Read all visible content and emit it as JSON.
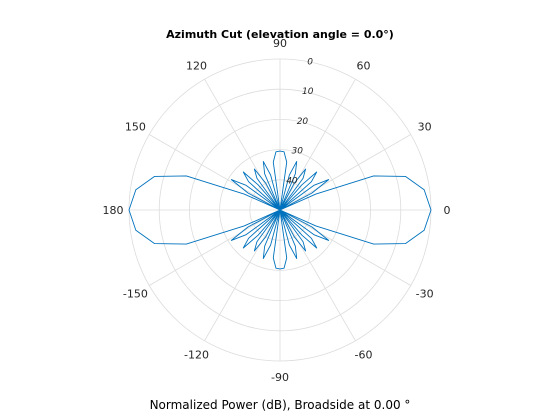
{
  "chart_data": {
    "type": "polar",
    "title": "Azimuth Cut (elevation angle = 0.0°)",
    "caption": "Normalized Power (dB), Broadside at 0.00 °",
    "angle_ticks": [
      "90",
      "60",
      "30",
      "0",
      "-30",
      "-60",
      "-90",
      "-120",
      "-150",
      "180",
      "150",
      "120"
    ],
    "angle_tick_values_deg": [
      90,
      60,
      30,
      0,
      -30,
      -60,
      -90,
      -120,
      -150,
      180,
      150,
      120
    ],
    "radial_ticks": [
      "0",
      "10",
      "20",
      "30",
      "40"
    ],
    "radial_tick_values_db": [
      0,
      10,
      20,
      30,
      40
    ],
    "radial_range_db": [
      0,
      50
    ],
    "grid": true,
    "series": [
      {
        "color": "#0072BD",
        "points": [
          [
            0,
            0
          ],
          [
            8,
            1.8
          ],
          [
            15,
            7
          ],
          [
            20,
            17
          ],
          [
            24,
            37
          ],
          [
            26,
            50
          ],
          [
            28,
            38
          ],
          [
            32,
            31
          ],
          [
            36,
            36
          ],
          [
            39,
            50
          ],
          [
            42,
            36
          ],
          [
            46,
            32.5
          ],
          [
            49,
            39
          ],
          [
            51,
            50
          ],
          [
            54,
            37
          ],
          [
            58,
            34
          ],
          [
            62,
            40
          ],
          [
            64,
            50
          ],
          [
            67,
            37
          ],
          [
            71,
            33
          ],
          [
            75,
            38
          ],
          [
            78,
            50
          ],
          [
            82,
            34
          ],
          [
            86,
            30.7
          ],
          [
            90,
            30.5
          ]
        ]
      }
    ]
  }
}
